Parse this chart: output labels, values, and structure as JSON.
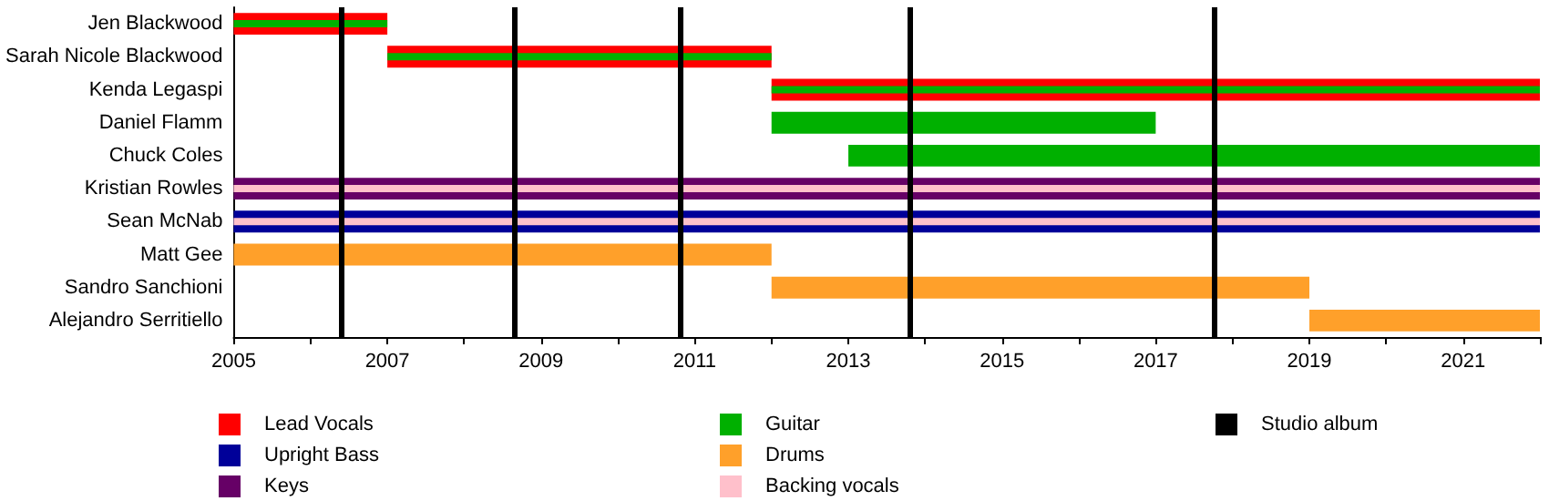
{
  "chart_data": {
    "type": "bar",
    "orientation": "horizontal",
    "categories": [
      "Jen Blackwood",
      "Sarah Nicole Blackwood",
      "Kenda Legaspi",
      "Daniel Flamm",
      "Chuck Coles",
      "Kristian Rowles",
      "Sean McNab",
      "Matt Gee",
      "Sandro Sanchioni",
      "Alejandro Serritiello"
    ],
    "series": [
      {
        "name": "Lead Vocals",
        "color": "#ff0000",
        "base": [
          2005,
          2007,
          2012,
          null,
          null,
          null,
          null,
          null,
          null,
          null
        ],
        "values": [
          2,
          5,
          10,
          null,
          null,
          null,
          null,
          null,
          null,
          null
        ]
      },
      {
        "name": "Upright Bass",
        "color": "#000099",
        "base": [
          null,
          null,
          null,
          null,
          null,
          null,
          2005,
          null,
          null,
          null
        ],
        "values": [
          null,
          null,
          null,
          null,
          null,
          null,
          17,
          null,
          null,
          null
        ]
      },
      {
        "name": "Keys",
        "color": "#660066",
        "base": [
          null,
          null,
          null,
          null,
          null,
          2005,
          null,
          null,
          null,
          null
        ],
        "values": [
          null,
          null,
          null,
          null,
          null,
          17,
          null,
          null,
          null,
          null
        ]
      },
      {
        "name": "Guitar",
        "color": "#00b000",
        "base": [
          2005,
          2007,
          2012,
          2012,
          2013,
          null,
          null,
          null,
          null,
          null
        ],
        "values": [
          2,
          5,
          10,
          5,
          9,
          null,
          null,
          null,
          null,
          null
        ]
      },
      {
        "name": "Drums",
        "color": "#ffa02a",
        "base": [
          null,
          null,
          null,
          null,
          null,
          null,
          null,
          2005,
          2012,
          2019
        ],
        "values": [
          null,
          null,
          null,
          null,
          null,
          null,
          null,
          7,
          7,
          3
        ]
      },
      {
        "name": "Backing vocals",
        "color": "#ffc0cb",
        "base": [
          null,
          null,
          null,
          null,
          null,
          2005,
          2005,
          null,
          null,
          null
        ],
        "values": [
          null,
          null,
          null,
          null,
          null,
          17,
          17,
          null,
          null,
          null
        ]
      }
    ],
    "xlim": [
      2005,
      2022
    ],
    "xticks": [
      2005,
      {
        "value": 2006,
        "label": null
      },
      2007,
      {
        "value": 2008,
        "label": null
      },
      2009,
      {
        "value": 2010,
        "label": null
      },
      2011,
      {
        "value": 2012,
        "label": null
      },
      2013,
      {
        "value": 2014,
        "label": null
      },
      2015,
      {
        "value": 2016,
        "label": null
      },
      2017,
      {
        "value": 2018,
        "label": null
      },
      2019,
      {
        "value": 2020,
        "label": null
      },
      2021,
      {
        "value": 2022,
        "label": null
      }
    ],
    "ref_lines": [
      {
        "axis": "x",
        "value": 2006.4,
        "label": "Studio album",
        "color": "#000000"
      },
      {
        "axis": "x",
        "value": 2008.65,
        "color": "#000000"
      },
      {
        "axis": "x",
        "value": 2010.8,
        "color": "#000000"
      },
      {
        "axis": "x",
        "value": 2013.8,
        "color": "#000000"
      },
      {
        "axis": "x",
        "value": 2017.75,
        "color": "#000000"
      }
    ],
    "legend": "bottom",
    "grid": false
  }
}
